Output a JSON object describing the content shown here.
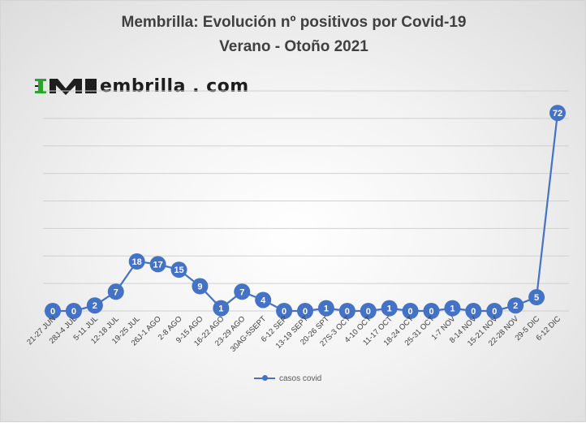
{
  "title": {
    "line1": "Membrilla: Evolución nº positivos por Covid-19",
    "line2": "Verano - Otoño 2021"
  },
  "logo": {
    "mark": "M",
    "text": "embrilla . com"
  },
  "colors": {
    "series": "#4472c4",
    "logo_green": "#2aa52a",
    "grid": "#d0d0d0"
  },
  "chart_data": {
    "type": "line",
    "title": "Membrilla: Evolución nº positivos por Covid-19 Verano - Otoño 2021",
    "categories": [
      "21-27 JUN",
      "28J-4 JUL",
      "5-11 JUL",
      "12-18 JUL",
      "19-25 JUL",
      "26J-1 AGO",
      "2-8 AGO",
      "9-15 AGO",
      "16-22 AGO",
      "23-29 AGO",
      "30AG-5SEPT",
      "6-12 SEP",
      "13-19 SEPT",
      "20-26 SPT",
      "27S-3 OCT",
      "4-10 OCT",
      "11-17 OCT",
      "18-24 OCT",
      "25-31 OCT",
      "1-7 NOV",
      "8-14 NOV",
      "15-21 NOV",
      "22-28 NOV",
      "29-5 DIC",
      "6-12 DIC"
    ],
    "series": [
      {
        "name": "casos covid",
        "values": [
          0,
          0,
          2,
          7,
          18,
          17,
          15,
          9,
          1,
          7,
          4,
          0,
          0,
          1,
          0,
          0,
          1,
          0,
          0,
          1,
          0,
          0,
          2,
          5,
          72
        ]
      }
    ],
    "ylim": [
      0,
      80
    ],
    "xlabel": "",
    "ylabel": "",
    "grid": true,
    "legend_position": "bottom",
    "data_labels": true
  }
}
